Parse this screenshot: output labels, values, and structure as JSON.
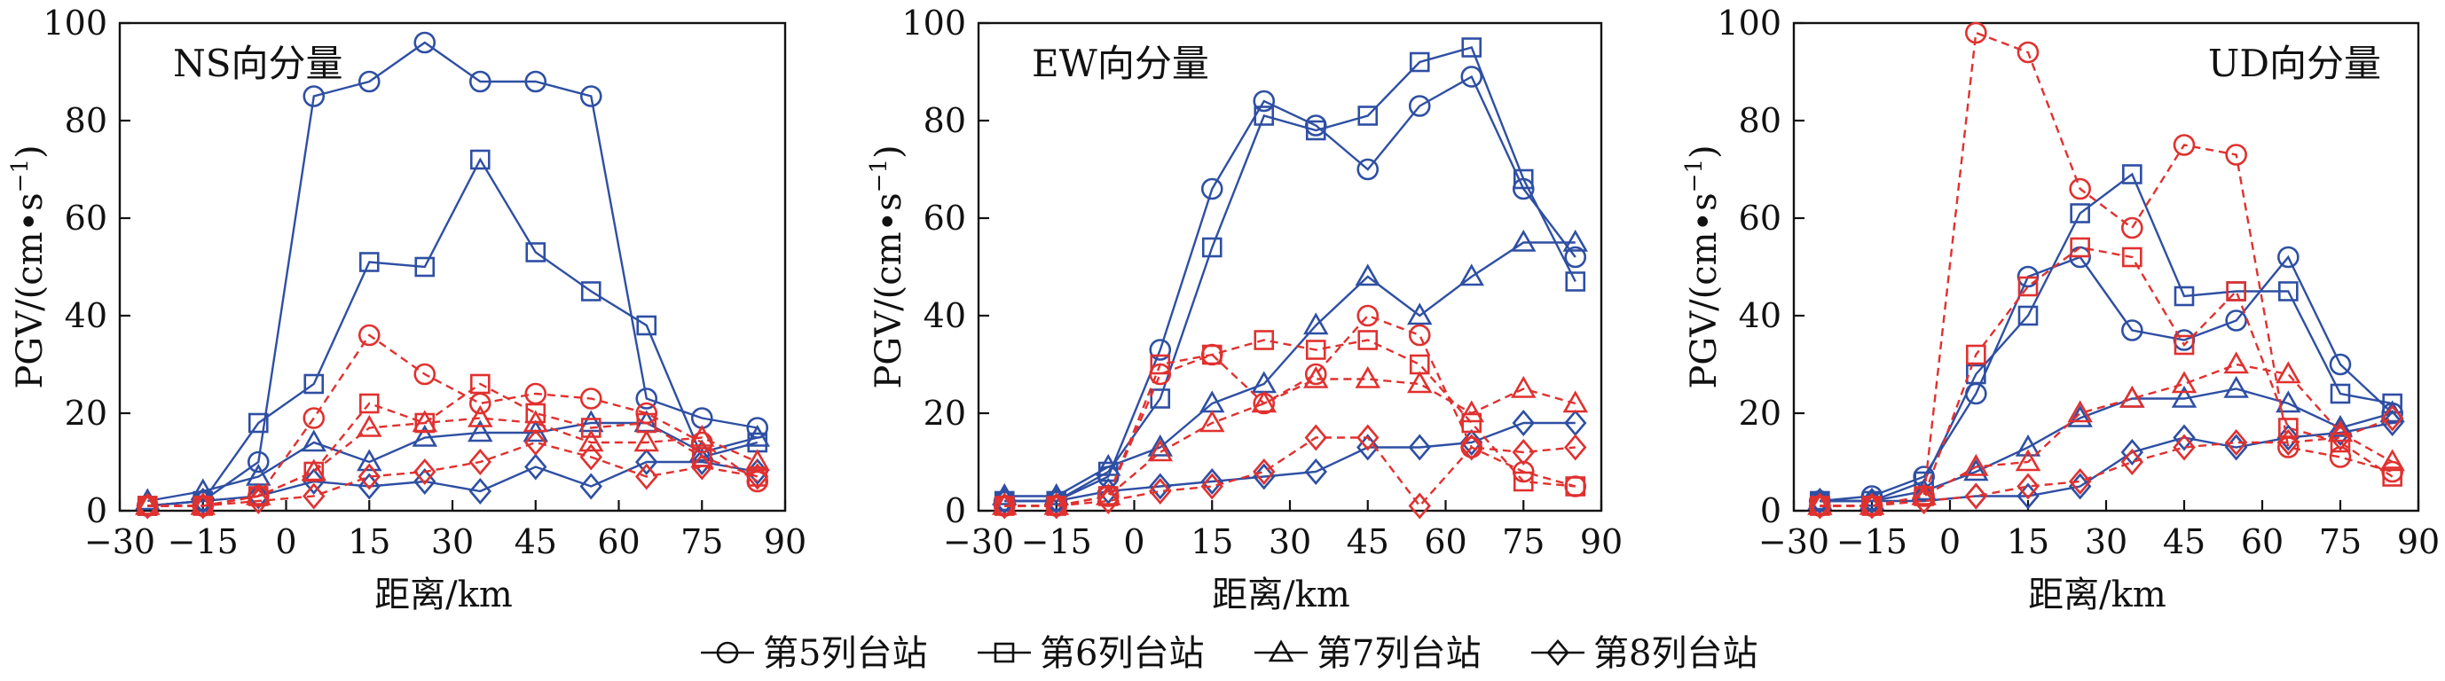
{
  "chart_data": {
    "type": "line",
    "x": [
      -25,
      -15,
      -5,
      5,
      15,
      25,
      35,
      45,
      55,
      65,
      75,
      85
    ],
    "xlim": [
      -30,
      90
    ],
    "ylim": [
      0,
      100
    ],
    "xticks": [
      "−30",
      "−15",
      "0",
      "15",
      "30",
      "45",
      "60",
      "75",
      "90"
    ],
    "xtick_values": [
      -30,
      -15,
      0,
      15,
      30,
      45,
      60,
      75,
      90
    ],
    "yticks": [
      "0",
      "20",
      "40",
      "60",
      "80",
      "100"
    ],
    "ytick_values": [
      0,
      20,
      40,
      60,
      80,
      100
    ],
    "xlabel": "距离/km",
    "ylabel": "PGV/(cm•s",
    "ylabel_sup": "−1",
    "ylabel_end": ")",
    "legend": [
      {
        "marker": "circle",
        "label": "第5列台站"
      },
      {
        "marker": "square",
        "label": "第6列台站"
      },
      {
        "marker": "triangle",
        "label": "第7列台站"
      },
      {
        "marker": "diamond",
        "label": "第8列台站"
      }
    ],
    "style_colors": {
      "blue": "#2e4fa3",
      "red": "#e0312f"
    },
    "panels": [
      {
        "label": "NS向分量",
        "label_position": "top-left",
        "series": [
          {
            "marker": "circle",
            "color": "blue",
            "dashed": false,
            "values": [
              1,
              2,
              10,
              85,
              88,
              96,
              88,
              88,
              85,
              23,
              19,
              17
            ]
          },
          {
            "marker": "square",
            "color": "blue",
            "dashed": false,
            "values": [
              1,
              2,
              18,
              26,
              51,
              50,
              72,
              53,
              45,
              38,
              11,
              14
            ]
          },
          {
            "marker": "triangle",
            "color": "blue",
            "dashed": false,
            "values": [
              2,
              4,
              7,
              14,
              10,
              15,
              16,
              16,
              18,
              18,
              12,
              15
            ]
          },
          {
            "marker": "diamond",
            "color": "blue",
            "dashed": false,
            "values": [
              1,
              2,
              3,
              6,
              5,
              6,
              4,
              9,
              5,
              10,
              10,
              8
            ]
          },
          {
            "marker": "circle",
            "color": "red",
            "dashed": true,
            "values": [
              1,
              1,
              3,
              19,
              36,
              28,
              22,
              24,
              23,
              20,
              14,
              6
            ]
          },
          {
            "marker": "square",
            "color": "red",
            "dashed": true,
            "values": [
              1,
              1,
              3,
              8,
              22,
              18,
              26,
              20,
              17,
              18,
              11,
              7
            ]
          },
          {
            "marker": "triangle",
            "color": "red",
            "dashed": true,
            "values": [
              1,
              1,
              3,
              8,
              17,
              18,
              19,
              18,
              14,
              14,
              15,
              10
            ]
          },
          {
            "marker": "diamond",
            "color": "red",
            "dashed": true,
            "values": [
              1,
              1,
              2,
              3,
              7,
              8,
              10,
              14,
              11,
              7,
              9,
              7
            ]
          }
        ]
      },
      {
        "label": "EW向分量",
        "label_position": "top-left",
        "series": [
          {
            "marker": "circle",
            "color": "blue",
            "dashed": false,
            "values": [
              2,
              2,
              7,
              33,
              66,
              84,
              79,
              70,
              83,
              89,
              66,
              52
            ]
          },
          {
            "marker": "square",
            "color": "blue",
            "dashed": false,
            "values": [
              2,
              2,
              8,
              23,
              54,
              81,
              78,
              81,
              92,
              95,
              68,
              47
            ]
          },
          {
            "marker": "triangle",
            "color": "blue",
            "dashed": false,
            "values": [
              3,
              3,
              9,
              13,
              22,
              26,
              38,
              48,
              40,
              48,
              55,
              55
            ]
          },
          {
            "marker": "diamond",
            "color": "blue",
            "dashed": false,
            "values": [
              2,
              2,
              4,
              5,
              6,
              7,
              8,
              13,
              13,
              14,
              18,
              18
            ]
          },
          {
            "marker": "circle",
            "color": "red",
            "dashed": true,
            "values": [
              1,
              1,
              3,
              28,
              32,
              22,
              28,
              40,
              36,
              13,
              8,
              5
            ]
          },
          {
            "marker": "square",
            "color": "red",
            "dashed": true,
            "values": [
              1,
              1,
              3,
              30,
              32,
              35,
              33,
              35,
              30,
              18,
              6,
              5
            ]
          },
          {
            "marker": "triangle",
            "color": "red",
            "dashed": true,
            "values": [
              1,
              1,
              3,
              12,
              18,
              22,
              27,
              27,
              26,
              20,
              25,
              22
            ]
          },
          {
            "marker": "diamond",
            "color": "red",
            "dashed": true,
            "values": [
              1,
              1,
              2,
              4,
              5,
              8,
              15,
              15,
              1,
              13,
              12,
              13
            ]
          }
        ]
      },
      {
        "label": "UD向分量",
        "label_position": "top-right",
        "series": [
          {
            "marker": "circle",
            "color": "blue",
            "dashed": false,
            "values": [
              2,
              3,
              7,
              24,
              48,
              52,
              37,
              35,
              39,
              52,
              30,
              20
            ]
          },
          {
            "marker": "square",
            "color": "blue",
            "dashed": false,
            "values": [
              2,
              2,
              6,
              28,
              40,
              61,
              69,
              44,
              45,
              45,
              24,
              22
            ]
          },
          {
            "marker": "triangle",
            "color": "blue",
            "dashed": false,
            "values": [
              2,
              2,
              4,
              8,
              13,
              19,
              23,
              23,
              25,
              22,
              17,
              20
            ]
          },
          {
            "marker": "diamond",
            "color": "blue",
            "dashed": false,
            "values": [
              2,
              2,
              2,
              3,
              3,
              5,
              12,
              15,
              13,
              15,
              16,
              18
            ]
          },
          {
            "marker": "circle",
            "color": "red",
            "dashed": true,
            "values": [
              1,
              1,
              3,
              98,
              94,
              66,
              58,
              75,
              73,
              13,
              11,
              8
            ]
          },
          {
            "marker": "square",
            "color": "red",
            "dashed": true,
            "values": [
              1,
              1,
              3,
              32,
              46,
              54,
              52,
              34,
              45,
              17,
              14,
              7
            ]
          },
          {
            "marker": "triangle",
            "color": "red",
            "dashed": true,
            "values": [
              1,
              1,
              3,
              9,
              10,
              20,
              23,
              26,
              30,
              28,
              16,
              10
            ]
          },
          {
            "marker": "diamond",
            "color": "red",
            "dashed": true,
            "values": [
              1,
              1,
              2,
              3,
              5,
              6,
              10,
              13,
              14,
              14,
              15,
              19
            ]
          }
        ]
      }
    ]
  }
}
